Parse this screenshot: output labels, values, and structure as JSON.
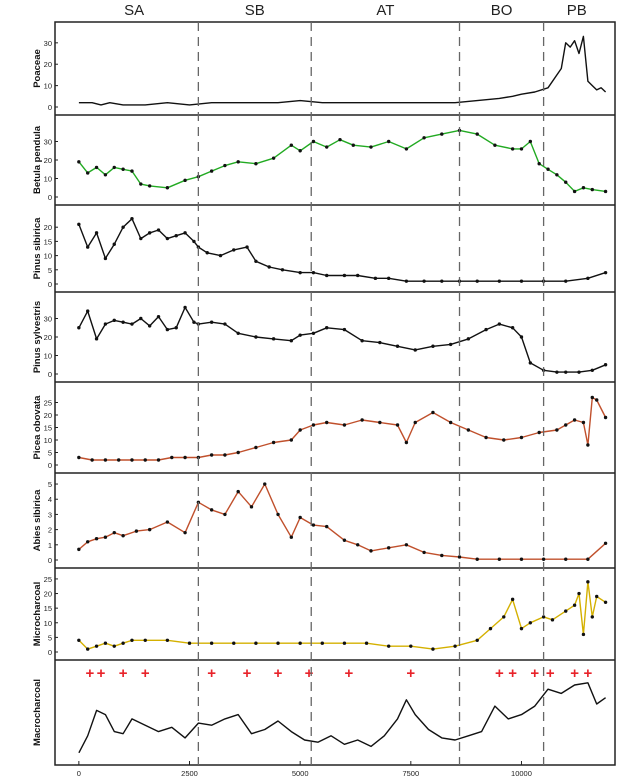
{
  "zones": [
    "SA",
    "SB",
    "AT",
    "BO",
    "PB"
  ],
  "zone_boundaries": [
    2700,
    5250,
    8600,
    10500
  ],
  "xaxis": {
    "ticks": [
      0,
      2500,
      5000,
      7500,
      10000
    ]
  },
  "chart_data": [
    {
      "type": "line",
      "ylabel": "Poaceae",
      "ylim": [
        0,
        36
      ],
      "yticks": [
        0,
        10,
        20,
        30
      ],
      "color": "#111111",
      "x": [
        0,
        300,
        500,
        700,
        1000,
        1500,
        2000,
        2500,
        3000,
        3500,
        4000,
        4500,
        5000,
        5500,
        6000,
        6500,
        7000,
        7500,
        8000,
        8500,
        9000,
        9500,
        9800,
        10000,
        10300,
        10600,
        10900,
        11000,
        11100,
        11200,
        11300,
        11400,
        11500,
        11600,
        11700,
        11800,
        11900
      ],
      "y": [
        2,
        2,
        1,
        2,
        1,
        1,
        2,
        1,
        2,
        2,
        2,
        2,
        3,
        2,
        2,
        2,
        2,
        2,
        2,
        2,
        3,
        4,
        5,
        6,
        7,
        9,
        18,
        30,
        28,
        31,
        25,
        33,
        12,
        10,
        8,
        9,
        7
      ]
    },
    {
      "type": "line",
      "ylabel": "Betula pendula",
      "ylim": [
        0,
        40
      ],
      "yticks": [
        0,
        10,
        20,
        30
      ],
      "color": "#22aa22",
      "x": [
        0,
        200,
        400,
        600,
        800,
        1000,
        1200,
        1400,
        1600,
        2000,
        2400,
        2700,
        3000,
        3300,
        3600,
        4000,
        4400,
        4800,
        5000,
        5300,
        5600,
        5900,
        6200,
        6600,
        7000,
        7400,
        7800,
        8200,
        8600,
        9000,
        9400,
        9800,
        10000,
        10200,
        10400,
        10600,
        10800,
        11000,
        11200,
        11400,
        11600,
        11900
      ],
      "y": [
        19,
        13,
        16,
        12,
        16,
        15,
        14,
        7,
        6,
        5,
        9,
        11,
        14,
        17,
        19,
        18,
        21,
        28,
        25,
        30,
        27,
        31,
        28,
        27,
        30,
        26,
        32,
        34,
        36,
        34,
        28,
        26,
        26,
        30,
        18,
        15,
        12,
        8,
        3,
        5,
        4,
        3
      ],
      "points": true
    },
    {
      "type": "line",
      "ylabel": "Pinus sibirica",
      "ylim": [
        0,
        25
      ],
      "yticks": [
        0,
        5,
        10,
        15,
        20
      ],
      "color": "#111111",
      "x": [
        0,
        200,
        400,
        600,
        800,
        1000,
        1200,
        1400,
        1600,
        1800,
        2000,
        2200,
        2400,
        2600,
        2700,
        2900,
        3200,
        3500,
        3800,
        4000,
        4300,
        4600,
        5000,
        5300,
        5600,
        6000,
        6300,
        6700,
        7000,
        7400,
        7800,
        8200,
        8600,
        9000,
        9500,
        10000,
        10500,
        11000,
        11500,
        11900
      ],
      "y": [
        21,
        13,
        18,
        9,
        14,
        20,
        23,
        16,
        18,
        19,
        16,
        17,
        18,
        15,
        13,
        11,
        10,
        12,
        13,
        8,
        6,
        5,
        4,
        4,
        3,
        3,
        3,
        2,
        2,
        1,
        1,
        1,
        1,
        1,
        1,
        1,
        1,
        1,
        2,
        4
      ],
      "points": true
    },
    {
      "type": "line",
      "ylabel": "Pinus sylvestris",
      "ylim": [
        0,
        40
      ],
      "yticks": [
        0,
        10,
        20,
        30
      ],
      "color": "#111111",
      "x": [
        0,
        200,
        400,
        600,
        800,
        1000,
        1200,
        1400,
        1600,
        1800,
        2000,
        2200,
        2400,
        2600,
        2700,
        3000,
        3300,
        3600,
        4000,
        4400,
        4800,
        5000,
        5300,
        5600,
        6000,
        6400,
        6800,
        7200,
        7600,
        8000,
        8400,
        8800,
        9200,
        9500,
        9800,
        10000,
        10200,
        10500,
        10800,
        11000,
        11300,
        11600,
        11900
      ],
      "y": [
        25,
        34,
        19,
        27,
        29,
        28,
        27,
        30,
        26,
        31,
        24,
        25,
        36,
        28,
        27,
        28,
        27,
        22,
        20,
        19,
        18,
        21,
        22,
        25,
        24,
        18,
        17,
        15,
        13,
        15,
        16,
        19,
        24,
        27,
        25,
        20,
        6,
        2,
        1,
        1,
        1,
        2,
        5
      ],
      "points": true
    },
    {
      "type": "line",
      "ylabel": "Picea obovata",
      "ylim": [
        0,
        30
      ],
      "yticks": [
        0,
        5,
        10,
        15,
        20,
        25
      ],
      "color": "#c0502c",
      "x": [
        0,
        300,
        600,
        900,
        1200,
        1500,
        1800,
        2100,
        2400,
        2700,
        3000,
        3300,
        3600,
        4000,
        4400,
        4800,
        5000,
        5300,
        5600,
        6000,
        6400,
        6800,
        7200,
        7400,
        7600,
        8000,
        8400,
        8800,
        9200,
        9600,
        10000,
        10400,
        10800,
        11000,
        11200,
        11400,
        11500,
        11600,
        11700,
        11900
      ],
      "y": [
        3,
        2,
        2,
        2,
        2,
        2,
        2,
        3,
        3,
        3,
        4,
        4,
        5,
        7,
        9,
        10,
        14,
        16,
        17,
        16,
        18,
        17,
        16,
        9,
        17,
        21,
        17,
        14,
        11,
        10,
        11,
        13,
        14,
        16,
        18,
        17,
        8,
        27,
        26,
        19
      ],
      "points": true
    },
    {
      "type": "line",
      "ylabel": "Abies sibirica",
      "ylim": [
        0,
        5.2
      ],
      "yticks": [
        0,
        1,
        2,
        3,
        4,
        5
      ],
      "color": "#c0502c",
      "x": [
        0,
        200,
        400,
        600,
        800,
        1000,
        1300,
        1600,
        2000,
        2400,
        2700,
        3000,
        3300,
        3600,
        3900,
        4200,
        4500,
        4800,
        5000,
        5300,
        5600,
        6000,
        6300,
        6600,
        7000,
        7400,
        7800,
        8200,
        8600,
        9000,
        9500,
        10000,
        10500,
        11000,
        11500,
        11900
      ],
      "y": [
        0.7,
        1.2,
        1.4,
        1.5,
        1.8,
        1.6,
        1.9,
        2.0,
        2.5,
        1.8,
        3.8,
        3.3,
        3.0,
        4.5,
        3.5,
        5.0,
        3.0,
        1.5,
        2.8,
        2.3,
        2.2,
        1.3,
        1.0,
        0.6,
        0.8,
        1.0,
        0.5,
        0.3,
        0.2,
        0.05,
        0.05,
        0.05,
        0.05,
        0.05,
        0.05,
        1.1
      ],
      "points": true
    },
    {
      "type": "line",
      "ylabel": "Microcharcoal",
      "ylim": [
        0,
        26
      ],
      "yticks": [
        0,
        5,
        10,
        15,
        20,
        25
      ],
      "color": "#d4b000",
      "x": [
        0,
        200,
        400,
        600,
        800,
        1000,
        1200,
        1500,
        2000,
        2500,
        3000,
        3500,
        4000,
        4500,
        5000,
        5500,
        6000,
        6500,
        7000,
        7500,
        8000,
        8500,
        9000,
        9300,
        9600,
        9800,
        10000,
        10200,
        10500,
        10700,
        11000,
        11200,
        11300,
        11400,
        11500,
        11600,
        11700,
        11900
      ],
      "y": [
        4,
        1,
        2,
        3,
        2,
        3,
        4,
        4,
        4,
        3,
        3,
        3,
        3,
        3,
        3,
        3,
        3,
        3,
        2,
        2,
        1,
        2,
        4,
        8,
        12,
        18,
        8,
        10,
        12,
        11,
        14,
        16,
        20,
        6,
        24,
        12,
        19,
        17
      ],
      "points": true
    },
    {
      "type": "line",
      "ylabel": "Macrocharcoal",
      "ylim": [
        0,
        42
      ],
      "yticks": [],
      "color": "#111111",
      "x": [
        0,
        200,
        400,
        600,
        800,
        1000,
        1200,
        1500,
        1800,
        2100,
        2400,
        2700,
        3000,
        3300,
        3600,
        3900,
        4200,
        4500,
        4800,
        5100,
        5400,
        5700,
        6000,
        6300,
        6600,
        6900,
        7200,
        7400,
        7600,
        7900,
        8200,
        8500,
        8800,
        9100,
        9400,
        9700,
        10000,
        10300,
        10600,
        10900,
        11200,
        11500,
        11700,
        11900
      ],
      "y": [
        2,
        10,
        22,
        20,
        12,
        11,
        18,
        15,
        12,
        14,
        9,
        16,
        15,
        18,
        20,
        11,
        13,
        17,
        12,
        8,
        7,
        10,
        6,
        8,
        5,
        10,
        18,
        27,
        20,
        13,
        9,
        8,
        10,
        12,
        24,
        18,
        20,
        24,
        32,
        30,
        34,
        35,
        25,
        28
      ],
      "points": false,
      "annotations": {
        "marker": "+",
        "x": [
          250,
          500,
          1000,
          1500,
          3000,
          3800,
          4500,
          5200,
          6100,
          7500,
          9500,
          9800,
          10300,
          10650,
          11200,
          11500
        ],
        "color": "#e8232a"
      }
    }
  ]
}
